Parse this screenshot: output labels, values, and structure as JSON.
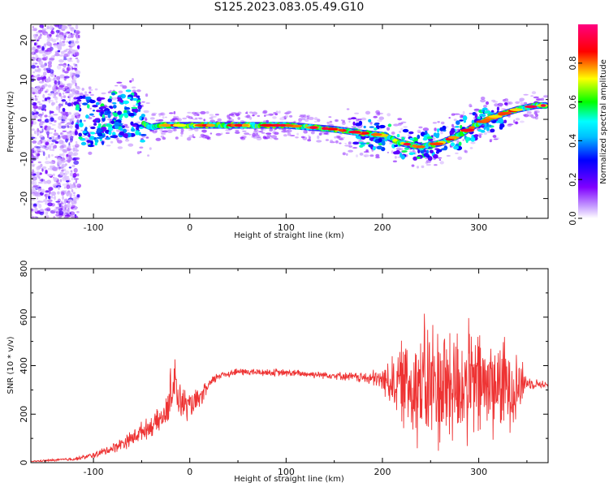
{
  "title": "S125.2023.083.05.49.G10",
  "chart_data": [
    {
      "type": "heatmap",
      "xlabel": "Height of straight line (km)",
      "ylabel": "Frequency (Hz)",
      "xlim": [
        -165,
        372
      ],
      "ylim": [
        -25,
        24
      ],
      "xticks": [
        -100,
        0,
        100,
        200,
        300
      ],
      "yticks": [
        -20,
        -10,
        0,
        10,
        20
      ],
      "colorbar": {
        "label": "Normalized spectral amplitude",
        "range": [
          0,
          1
        ],
        "ticks": [
          "0.0",
          "0.2",
          "0.4",
          "0.6",
          "0.8"
        ],
        "colormap": [
          "#ffffff",
          "#8000ff",
          "#0000ff",
          "#00ffff",
          "#00ff00",
          "#ffff00",
          "#ff0000",
          "#ff0080"
        ]
      },
      "ridge": {
        "x": [
          -115,
          -100,
          -80,
          -60,
          -50,
          -40,
          -30,
          -20,
          0,
          50,
          100,
          150,
          180,
          200,
          220,
          240,
          260,
          280,
          300,
          320,
          340,
          360,
          370
        ],
        "y": [
          0,
          -1,
          1,
          2,
          -1,
          -2,
          -1.5,
          -1.5,
          -1.5,
          -1.5,
          -1.5,
          -2.5,
          -3.5,
          -4,
          -6,
          -7,
          -6,
          -4,
          -1,
          1,
          2.5,
          3.5,
          3.5
        ]
      }
    },
    {
      "type": "line",
      "xlabel": "Height of straight line (km)",
      "ylabel": "SNR (10 * v/v)",
      "xlim": [
        -165,
        372
      ],
      "ylim": [
        0,
        800
      ],
      "xticks": [
        -100,
        0,
        100,
        200,
        300
      ],
      "yticks": [
        0,
        200,
        400,
        600,
        800
      ],
      "color": "#ee3333",
      "envelope": {
        "x": [
          -165,
          -120,
          -100,
          -80,
          -60,
          -50,
          -40,
          -30,
          -25,
          -20,
          -18,
          -10,
          0,
          10,
          20,
          30,
          50,
          100,
          150,
          180,
          200,
          220,
          240,
          260,
          280,
          300,
          320,
          340,
          350,
          372
        ],
        "mean": [
          5,
          15,
          30,
          60,
          100,
          130,
          150,
          180,
          200,
          250,
          320,
          250,
          230,
          260,
          320,
          360,
          375,
          370,
          360,
          350,
          340,
          330,
          320,
          320,
          320,
          320,
          320,
          320,
          330,
          320
        ],
        "amp": [
          3,
          8,
          15,
          25,
          40,
          45,
          50,
          60,
          70,
          90,
          120,
          90,
          70,
          50,
          30,
          20,
          18,
          18,
          18,
          25,
          60,
          200,
          320,
          330,
          300,
          280,
          240,
          200,
          30,
          15
        ]
      }
    }
  ]
}
